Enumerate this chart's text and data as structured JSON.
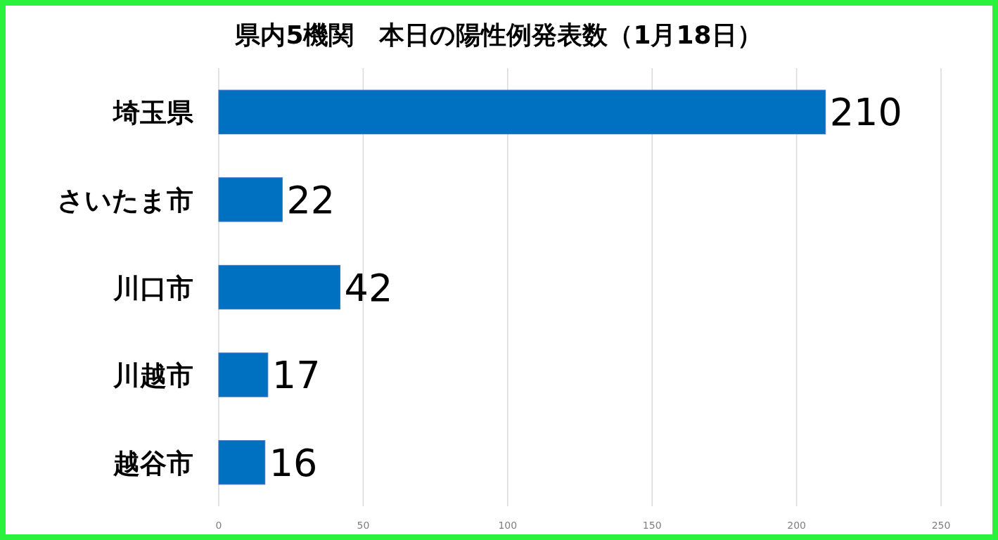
{
  "chart_data": {
    "type": "bar",
    "orientation": "horizontal",
    "title": "県内5機関　本日の陽性例発表数（1月18日）",
    "categories": [
      "埼玉県",
      "さいたま市",
      "川口市",
      "川越市",
      "越谷市"
    ],
    "values": [
      210,
      22,
      42,
      17,
      16
    ],
    "color": "#0070c0",
    "xlim": [
      0,
      250
    ],
    "xticks": [
      0,
      50,
      100,
      150,
      200,
      250
    ],
    "grid": "x",
    "data_labels": true
  }
}
